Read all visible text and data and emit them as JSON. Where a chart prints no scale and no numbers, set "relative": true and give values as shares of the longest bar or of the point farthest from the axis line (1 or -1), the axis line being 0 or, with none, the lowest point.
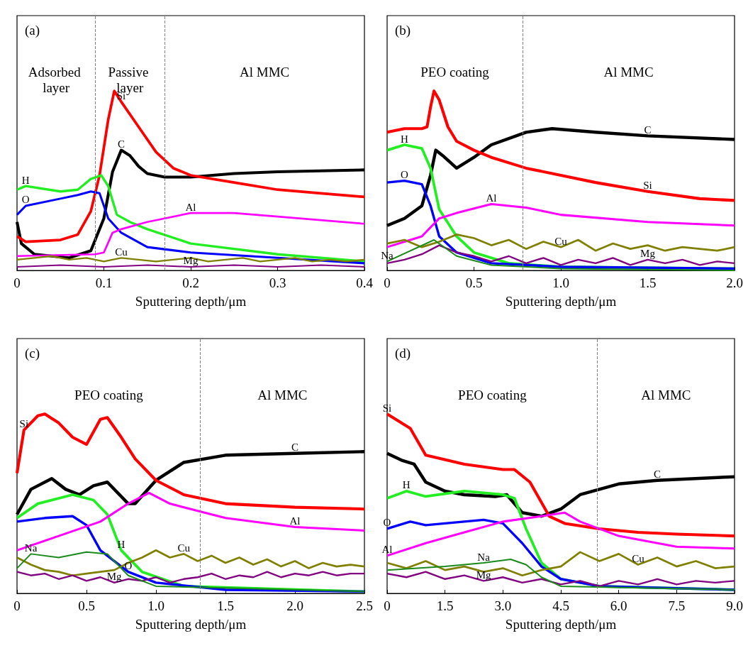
{
  "chart_data": [
    {
      "type": "line",
      "relative": true,
      "title": "(a)",
      "xlabel": "Sputtering depth/μm",
      "xlim": [
        0,
        0.4
      ],
      "xticks": [
        0,
        0.1,
        0.2,
        0.3,
        0.4
      ],
      "grid": false,
      "ref_lines": [
        {
          "axis": "x",
          "value": 0.09,
          "color": "#808080",
          "line_style": "dashed"
        },
        {
          "axis": "x",
          "value": 0.17,
          "color": "#808080",
          "line_style": "dashed"
        }
      ],
      "annotations": [
        "Adsorbed layer",
        "Passive layer",
        "Al MMC"
      ],
      "series": [
        {
          "name": "C",
          "color": "#000000",
          "x": [
            0,
            0.005,
            0.02,
            0.06,
            0.085,
            0.1,
            0.11,
            0.12,
            0.13,
            0.14,
            0.15,
            0.17,
            0.2,
            0.25,
            0.3,
            0.4
          ],
          "values": [
            0.27,
            0.15,
            0.09,
            0.07,
            0.11,
            0.29,
            0.55,
            0.67,
            0.64,
            0.58,
            0.54,
            0.52,
            0.52,
            0.54,
            0.55,
            0.56
          ]
        },
        {
          "name": "Si",
          "color": "#ff0000",
          "x": [
            0,
            0.01,
            0.05,
            0.07,
            0.085,
            0.095,
            0.105,
            0.112,
            0.12,
            0.14,
            0.16,
            0.18,
            0.2,
            0.25,
            0.3,
            0.35,
            0.4
          ],
          "values": [
            0.19,
            0.16,
            0.17,
            0.2,
            0.33,
            0.53,
            0.84,
            1.0,
            0.94,
            0.8,
            0.66,
            0.57,
            0.53,
            0.49,
            0.45,
            0.43,
            0.41
          ]
        },
        {
          "name": "H",
          "color": "#22ee22",
          "x": [
            0,
            0.01,
            0.05,
            0.07,
            0.085,
            0.097,
            0.105,
            0.115,
            0.13,
            0.15,
            0.2,
            0.3,
            0.4
          ],
          "values": [
            0.45,
            0.47,
            0.44,
            0.45,
            0.51,
            0.53,
            0.47,
            0.31,
            0.27,
            0.23,
            0.15,
            0.09,
            0.05
          ]
        },
        {
          "name": "O",
          "color": "#0000ff",
          "x": [
            0,
            0.01,
            0.05,
            0.07,
            0.085,
            0.095,
            0.105,
            0.12,
            0.15,
            0.2,
            0.3,
            0.4
          ],
          "values": [
            0.31,
            0.36,
            0.4,
            0.42,
            0.44,
            0.43,
            0.29,
            0.21,
            0.13,
            0.1,
            0.07,
            0.04
          ]
        },
        {
          "name": "Al",
          "color": "#ff00ff",
          "x": [
            0,
            0.09,
            0.1,
            0.11,
            0.12,
            0.15,
            0.2,
            0.25,
            0.3,
            0.4
          ],
          "values": [
            0.08,
            0.09,
            0.1,
            0.21,
            0.23,
            0.27,
            0.32,
            0.32,
            0.3,
            0.26
          ]
        },
        {
          "name": "Cu",
          "color": "#808000",
          "x": [
            0,
            0.02,
            0.04,
            0.06,
            0.08,
            0.1,
            0.12,
            0.14,
            0.16,
            0.18,
            0.2,
            0.22,
            0.24,
            0.26,
            0.28,
            0.3,
            0.32,
            0.34,
            0.36,
            0.38,
            0.4
          ],
          "values": [
            0.06,
            0.07,
            0.08,
            0.06,
            0.07,
            0.05,
            0.07,
            0.06,
            0.05,
            0.06,
            0.07,
            0.05,
            0.06,
            0.07,
            0.05,
            0.06,
            0.07,
            0.05,
            0.06,
            0.05,
            0.06
          ]
        },
        {
          "name": "Mg",
          "color": "#800080",
          "x": [
            0,
            0.05,
            0.1,
            0.15,
            0.2,
            0.25,
            0.3,
            0.35,
            0.4
          ],
          "values": [
            0.02,
            0.03,
            0.02,
            0.03,
            0.02,
            0.03,
            0.02,
            0.03,
            0.02
          ]
        }
      ]
    },
    {
      "type": "line",
      "relative": true,
      "title": "(b)",
      "xlabel": "Sputtering depth/μm",
      "xlim": [
        0,
        2.0
      ],
      "xticks": [
        0,
        0.5,
        {
          "value": 1,
          "label": "1.0"
        },
        1.5,
        {
          "value": 2,
          "label": "2.0"
        }
      ],
      "grid": false,
      "ref_lines": [
        {
          "axis": "x",
          "value": 0.78,
          "color": "#808080",
          "line_style": "dashed"
        }
      ],
      "annotations": [
        "PEO coating",
        "Al MMC"
      ],
      "series": [
        {
          "name": "C",
          "color": "#000000",
          "x": [
            0,
            0.1,
            0.2,
            0.25,
            0.28,
            0.32,
            0.4,
            0.5,
            0.6,
            0.8,
            0.95,
            1.2,
            1.5,
            2.0
          ],
          "values": [
            0.25,
            0.29,
            0.36,
            0.53,
            0.67,
            0.64,
            0.57,
            0.63,
            0.7,
            0.77,
            0.79,
            0.77,
            0.75,
            0.73
          ]
        },
        {
          "name": "Si",
          "color": "#ff0000",
          "x": [
            0,
            0.1,
            0.2,
            0.23,
            0.25,
            0.27,
            0.3,
            0.35,
            0.4,
            0.5,
            0.6,
            0.8,
            1.0,
            1.2,
            1.5,
            1.8,
            2.0
          ],
          "values": [
            0.77,
            0.79,
            0.79,
            0.8,
            0.91,
            1.0,
            0.95,
            0.8,
            0.72,
            0.67,
            0.63,
            0.57,
            0.53,
            0.49,
            0.44,
            0.4,
            0.39
          ]
        },
        {
          "name": "H",
          "color": "#22ee22",
          "x": [
            0,
            0.1,
            0.2,
            0.25,
            0.3,
            0.4,
            0.5,
            0.7,
            1.0,
            2.0
          ],
          "values": [
            0.67,
            0.7,
            0.68,
            0.57,
            0.34,
            0.19,
            0.1,
            0.04,
            0.02,
            0.01
          ]
        },
        {
          "name": "O",
          "color": "#0000ff",
          "x": [
            0,
            0.1,
            0.2,
            0.25,
            0.3,
            0.4,
            0.6,
            1.0,
            2.0
          ],
          "values": [
            0.49,
            0.5,
            0.48,
            0.36,
            0.19,
            0.1,
            0.04,
            0.02,
            0.01
          ]
        },
        {
          "name": "Al",
          "color": "#ff00ff",
          "x": [
            0,
            0.2,
            0.3,
            0.4,
            0.6,
            0.8,
            1.0,
            1.5,
            2.0
          ],
          "values": [
            0.13,
            0.19,
            0.29,
            0.32,
            0.37,
            0.35,
            0.31,
            0.27,
            0.25
          ]
        },
        {
          "name": "Cu",
          "color": "#808000",
          "x": [
            0,
            0.1,
            0.2,
            0.3,
            0.4,
            0.5,
            0.6,
            0.7,
            0.8,
            0.9,
            1.0,
            1.1,
            1.2,
            1.3,
            1.4,
            1.5,
            1.6,
            1.7,
            1.8,
            1.9,
            2.0
          ],
          "values": [
            0.15,
            0.17,
            0.13,
            0.16,
            0.2,
            0.18,
            0.14,
            0.17,
            0.12,
            0.16,
            0.13,
            0.17,
            0.11,
            0.15,
            0.12,
            0.14,
            0.11,
            0.13,
            0.12,
            0.11,
            0.13
          ]
        },
        {
          "name": "Mg",
          "color": "#800080",
          "x": [
            0,
            0.1,
            0.2,
            0.3,
            0.4,
            0.5,
            0.6,
            0.7,
            0.8,
            0.9,
            1.0,
            1.1,
            1.2,
            1.3,
            1.4,
            1.5,
            1.6,
            1.7,
            1.8,
            1.9,
            2.0
          ],
          "values": [
            0.04,
            0.06,
            0.09,
            0.14,
            0.1,
            0.08,
            0.05,
            0.08,
            0.04,
            0.07,
            0.03,
            0.06,
            0.04,
            0.07,
            0.03,
            0.06,
            0.04,
            0.06,
            0.03,
            0.05,
            0.04
          ]
        },
        {
          "name": "Na",
          "color": "#1a8a1a",
          "x": [
            0,
            0.27,
            0.4,
            0.6,
            1.0,
            2.0
          ],
          "values": [
            0.05,
            0.17,
            0.08,
            0.03,
            0.01,
            0.0
          ]
        }
      ]
    },
    {
      "type": "line",
      "relative": true,
      "title": "(c)",
      "xlabel": "Sputtering depth/μm",
      "xlim": [
        0,
        2.5
      ],
      "xticks": [
        0,
        0.5,
        {
          "value": 1,
          "label": "1.0"
        },
        1.5,
        {
          "value": 2,
          "label": "2.0"
        },
        2.5
      ],
      "grid": false,
      "ref_lines": [
        {
          "axis": "x",
          "value": 1.32,
          "color": "#808080",
          "line_style": "dashed"
        }
      ],
      "annotations": [
        "PEO coating",
        "Al MMC"
      ],
      "series": [
        {
          "name": "C",
          "color": "#000000",
          "x": [
            0,
            0.1,
            0.25,
            0.35,
            0.45,
            0.55,
            0.65,
            0.8,
            0.85,
            1.0,
            1.2,
            1.5,
            2.0,
            2.5
          ],
          "values": [
            0.44,
            0.58,
            0.64,
            0.58,
            0.55,
            0.6,
            0.62,
            0.5,
            0.5,
            0.63,
            0.73,
            0.77,
            0.78,
            0.79
          ]
        },
        {
          "name": "Si",
          "color": "#ff0000",
          "x": [
            0,
            0.05,
            0.15,
            0.2,
            0.3,
            0.4,
            0.5,
            0.6,
            0.65,
            0.75,
            0.85,
            1.0,
            1.2,
            1.5,
            2.0,
            2.5
          ],
          "values": [
            0.67,
            0.91,
            0.99,
            1.0,
            0.95,
            0.87,
            0.83,
            0.97,
            0.98,
            0.87,
            0.75,
            0.63,
            0.55,
            0.5,
            0.48,
            0.47
          ]
        },
        {
          "name": "H",
          "color": "#22ee22",
          "x": [
            0,
            0.15,
            0.4,
            0.55,
            0.65,
            0.75,
            0.9,
            1.2,
            2.5
          ],
          "values": [
            0.42,
            0.5,
            0.55,
            0.52,
            0.44,
            0.24,
            0.12,
            0.04,
            0.01
          ]
        },
        {
          "name": "O",
          "color": "#0000ff",
          "x": [
            0,
            0.2,
            0.4,
            0.5,
            0.6,
            0.8,
            1.0,
            1.5,
            2.5
          ],
          "values": [
            0.4,
            0.42,
            0.43,
            0.38,
            0.24,
            0.12,
            0.06,
            0.02,
            0.01
          ]
        },
        {
          "name": "Al",
          "color": "#ff00ff",
          "x": [
            0,
            0.3,
            0.6,
            0.8,
            0.95,
            1.1,
            1.5,
            2.0,
            2.5
          ],
          "values": [
            0.24,
            0.32,
            0.4,
            0.5,
            0.56,
            0.5,
            0.42,
            0.37,
            0.35
          ]
        },
        {
          "name": "Cu",
          "color": "#808000",
          "x": [
            0,
            0.1,
            0.2,
            0.3,
            0.4,
            0.5,
            0.6,
            0.7,
            0.8,
            0.9,
            1.0,
            1.1,
            1.2,
            1.3,
            1.4,
            1.5,
            1.6,
            1.7,
            1.8,
            1.9,
            2.0,
            2.1,
            2.2,
            2.3,
            2.4,
            2.5
          ],
          "values": [
            0.2,
            0.16,
            0.13,
            0.12,
            0.1,
            0.11,
            0.12,
            0.13,
            0.17,
            0.2,
            0.24,
            0.2,
            0.22,
            0.18,
            0.21,
            0.17,
            0.2,
            0.16,
            0.19,
            0.15,
            0.18,
            0.14,
            0.17,
            0.15,
            0.16,
            0.15
          ]
        },
        {
          "name": "Mg",
          "color": "#800080",
          "x": [
            0,
            0.1,
            0.2,
            0.3,
            0.4,
            0.5,
            0.6,
            0.7,
            0.8,
            0.9,
            1.0,
            1.1,
            1.2,
            1.3,
            1.4,
            1.5,
            1.6,
            1.7,
            1.8,
            1.9,
            2.0,
            2.1,
            2.2,
            2.3,
            2.4,
            2.5
          ],
          "values": [
            0.12,
            0.1,
            0.11,
            0.08,
            0.1,
            0.07,
            0.09,
            0.06,
            0.08,
            0.07,
            0.09,
            0.06,
            0.08,
            0.09,
            0.11,
            0.08,
            0.1,
            0.09,
            0.12,
            0.09,
            0.11,
            0.1,
            0.12,
            0.1,
            0.11,
            0.11
          ]
        },
        {
          "name": "Na",
          "color": "#1a8a1a",
          "x": [
            0,
            0.1,
            0.3,
            0.5,
            0.65,
            0.8,
            1.0,
            2.5
          ],
          "values": [
            0.14,
            0.22,
            0.2,
            0.23,
            0.22,
            0.1,
            0.04,
            0.01
          ]
        }
      ]
    },
    {
      "type": "line",
      "relative": true,
      "title": "(d)",
      "xlabel": "Sputtering depth/μm",
      "xlim": [
        0,
        9.0
      ],
      "xticks": [
        0,
        1.5,
        {
          "value": 3,
          "label": "3.0"
        },
        4.5,
        {
          "value": 6,
          "label": "6.0"
        },
        7.5,
        {
          "value": 9,
          "label": "9.0"
        }
      ],
      "grid": false,
      "ref_lines": [
        {
          "axis": "x",
          "value": 5.45,
          "color": "#808080",
          "line_style": "dashed"
        }
      ],
      "annotations": [
        "PEO coating",
        "Al MMC"
      ],
      "series": [
        {
          "name": "C",
          "color": "#000000",
          "x": [
            0,
            0.4,
            0.7,
            1.0,
            1.5,
            2.0,
            2.8,
            3.1,
            3.5,
            4.0,
            4.5,
            5.0,
            6.0,
            7.0,
            9.0
          ],
          "values": [
            0.78,
            0.74,
            0.72,
            0.62,
            0.57,
            0.55,
            0.54,
            0.55,
            0.45,
            0.43,
            0.47,
            0.55,
            0.61,
            0.63,
            0.65
          ]
        },
        {
          "name": "Si",
          "color": "#ff0000",
          "x": [
            0,
            0.6,
            1.0,
            2.0,
            3.0,
            3.3,
            3.7,
            4.2,
            4.6,
            5.5,
            6.5,
            7.5,
            9.0
          ],
          "values": [
            1.0,
            0.92,
            0.77,
            0.72,
            0.69,
            0.69,
            0.62,
            0.43,
            0.39,
            0.36,
            0.34,
            0.33,
            0.32
          ]
        },
        {
          "name": "H",
          "color": "#22ee22",
          "x": [
            0,
            0.5,
            1.0,
            2.0,
            3.0,
            3.3,
            3.6,
            4.0,
            4.5,
            5.5,
            9.0
          ],
          "values": [
            0.53,
            0.57,
            0.54,
            0.57,
            0.55,
            0.53,
            0.36,
            0.17,
            0.08,
            0.04,
            0.02
          ]
        },
        {
          "name": "O",
          "color": "#0000ff",
          "x": [
            0,
            0.6,
            1.0,
            2.0,
            2.5,
            3.0,
            3.5,
            4.0,
            4.5,
            5.5,
            9.0
          ],
          "values": [
            0.36,
            0.4,
            0.38,
            0.4,
            0.41,
            0.39,
            0.28,
            0.15,
            0.08,
            0.04,
            0.02
          ]
        },
        {
          "name": "Al",
          "color": "#ff00ff",
          "x": [
            0,
            1.0,
            2.0,
            3.0,
            4.0,
            4.6,
            5.0,
            6.0,
            7.5,
            9.0
          ],
          "values": [
            0.21,
            0.28,
            0.34,
            0.4,
            0.43,
            0.45,
            0.4,
            0.32,
            0.26,
            0.25
          ]
        },
        {
          "name": "Cu",
          "color": "#808000",
          "x": [
            0,
            0.5,
            1.0,
            1.5,
            2.0,
            2.5,
            3.0,
            3.5,
            4.0,
            4.5,
            5.0,
            5.5,
            6.0,
            6.5,
            7.0,
            7.5,
            8.0,
            8.5,
            9.0
          ],
          "values": [
            0.17,
            0.14,
            0.18,
            0.13,
            0.15,
            0.12,
            0.14,
            0.1,
            0.13,
            0.15,
            0.23,
            0.18,
            0.22,
            0.16,
            0.2,
            0.15,
            0.18,
            0.14,
            0.15
          ]
        },
        {
          "name": "Mg",
          "color": "#800080",
          "x": [
            0,
            0.5,
            1.0,
            1.5,
            2.0,
            2.5,
            3.0,
            3.5,
            4.0,
            4.5,
            5.0,
            5.5,
            6.0,
            6.5,
            7.0,
            7.5,
            8.0,
            8.5,
            9.0
          ],
          "values": [
            0.11,
            0.09,
            0.12,
            0.08,
            0.1,
            0.07,
            0.09,
            0.06,
            0.08,
            0.05,
            0.07,
            0.04,
            0.07,
            0.05,
            0.08,
            0.05,
            0.07,
            0.06,
            0.07
          ]
        },
        {
          "name": "Na",
          "color": "#1a8a1a",
          "x": [
            0,
            1.5,
            2.5,
            3.2,
            3.6,
            4.0,
            4.5,
            9.0
          ],
          "values": [
            0.13,
            0.15,
            0.17,
            0.19,
            0.16,
            0.09,
            0.04,
            0.02
          ]
        }
      ]
    }
  ]
}
